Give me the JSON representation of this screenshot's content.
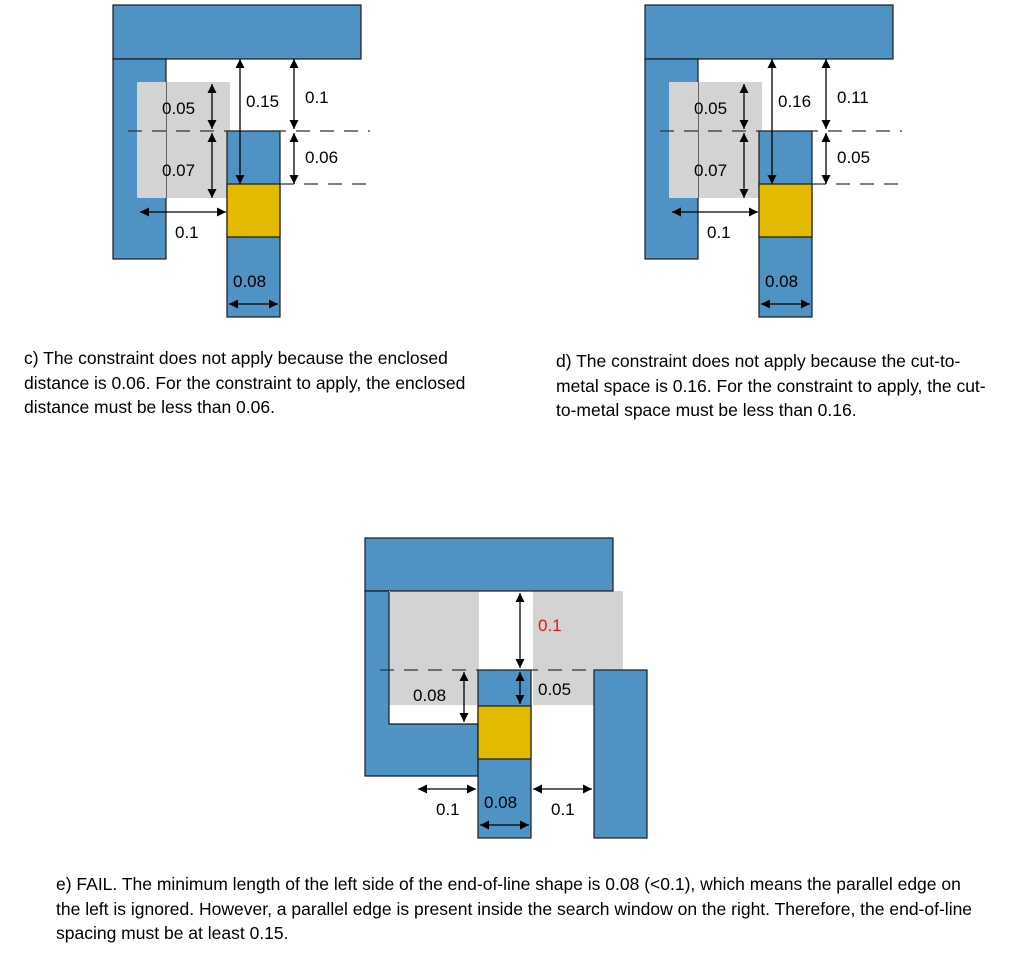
{
  "colors": {
    "metal": "#4f93c4",
    "cut": "#e3ba00",
    "search_window": "#d3d3d3",
    "highlight_label": "#ee1111"
  },
  "panel_c": {
    "labels": {
      "enclosed_upper": "0.05",
      "enclosed_lower": "0.07",
      "cut_to_metal": "0.15",
      "end_of_line_space": "0.1",
      "enclosed_distance": "0.06",
      "left_spacing": "0.1",
      "line_width": "0.08"
    },
    "caption": "c) The constraint does not apply because the enclosed distance is 0.06. For the constraint to apply, the enclosed distance must be less than 0.06."
  },
  "panel_d": {
    "labels": {
      "enclosed_upper": "0.05",
      "enclosed_lower": "0.07",
      "cut_to_metal": "0.16",
      "end_of_line_space": "0.11",
      "enclosed_distance": "0.05",
      "left_spacing": "0.1",
      "line_width": "0.08"
    },
    "caption": "d) The constraint does not apply because the cut-to-metal space is 0.16. For the constraint to apply, the cut-to-metal space must be less than 0.16."
  },
  "panel_e": {
    "labels": {
      "end_of_line_space": "0.1",
      "left_side_length": "0.08",
      "enclosed_distance": "0.05",
      "left_spacing": "0.1",
      "line_width": "0.08",
      "right_spacing": "0.1"
    },
    "caption": "e) FAIL. The minimum length of the left side of the end-of-line shape is 0.08 (<0.1), which means the parallel edge on the left is ignored. However, a parallel edge is present inside the search window on the right. Therefore, the end-of-line spacing must be at least 0.15."
  }
}
